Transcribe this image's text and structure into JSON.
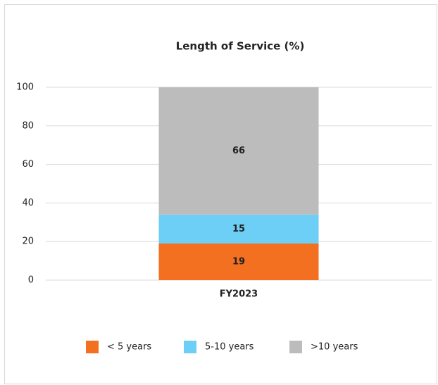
{
  "chart_data": {
    "type": "stacked_bar",
    "title": "Length of Service (%)",
    "categories": [
      "FY2023"
    ],
    "series": [
      {
        "name": "< 5 years",
        "color": "#f37021",
        "values": [
          19
        ]
      },
      {
        "name": "5-10 years",
        "color": "#6dcff6",
        "values": [
          15
        ]
      },
      {
        "name": ">10 years",
        "color": "#bcbcbc",
        "values": [
          66
        ]
      }
    ],
    "ylim": [
      0,
      100
    ],
    "yticks": [
      0,
      20,
      40,
      60,
      80,
      100
    ],
    "grid": true,
    "legend": "bottom"
  }
}
